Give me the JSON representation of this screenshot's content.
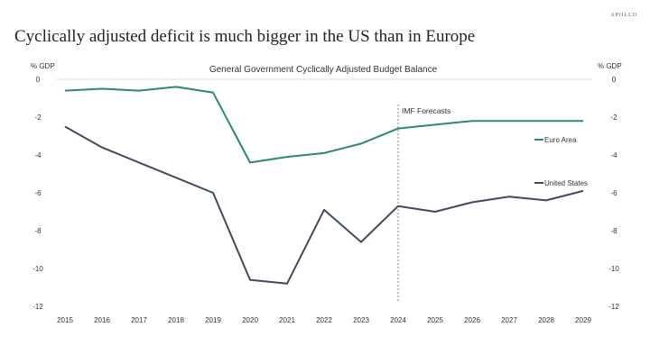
{
  "brand": "APOLLO",
  "title": "Cyclically adjusted deficit is much bigger in the US than in Europe",
  "chart_data": {
    "type": "line",
    "title": "General Government Cyclically Adjusted Budget Balance",
    "ylabel_left": "% GDP",
    "ylabel_right": "% GDP",
    "ylim": [
      -12,
      0
    ],
    "yticks": [
      0,
      -2,
      -4,
      -6,
      -8,
      -10,
      -12
    ],
    "x": [
      2015,
      2016,
      2017,
      2018,
      2019,
      2020,
      2021,
      2022,
      2023,
      2024,
      2025,
      2026,
      2027,
      2028,
      2029
    ],
    "grid": false,
    "annotation": {
      "label": "IMF Forecasts",
      "x": 2024
    },
    "series": [
      {
        "name": "Euro Area",
        "color": "#2a8a6e",
        "values": [
          -0.6,
          -0.5,
          -0.6,
          -0.4,
          -0.7,
          -4.4,
          -4.1,
          -3.9,
          -3.4,
          -2.6,
          -2.4,
          -2.2,
          -2.2,
          -2.2,
          -2.2
        ]
      },
      {
        "name": "United States",
        "color": "#3f4b5e",
        "values": [
          -2.5,
          -3.6,
          -4.4,
          -5.2,
          -6.0,
          -10.6,
          -10.8,
          -6.9,
          -8.6,
          -6.7,
          -7.0,
          -6.5,
          -6.2,
          -6.4,
          -5.9
        ]
      }
    ]
  }
}
